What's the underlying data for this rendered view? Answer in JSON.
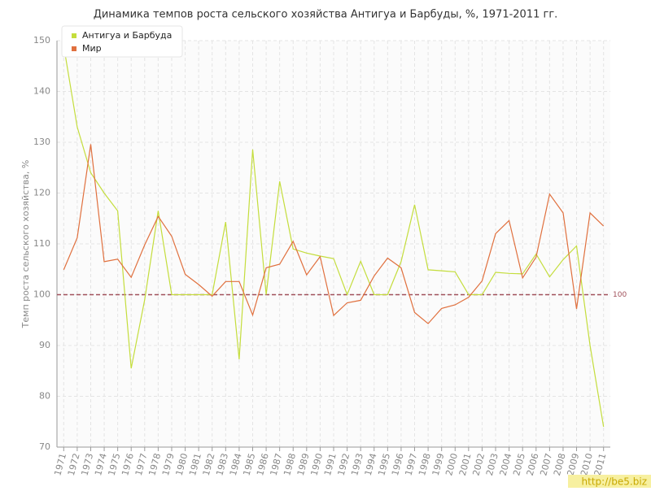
{
  "chart_data": {
    "type": "line",
    "title": "Динамика темпов роста сельского хозяйства Антигуа и Барбуды, %, 1971-2011 гг.",
    "y_label": "Темп роста сельского хозяйства, %",
    "categories": [
      "1971",
      "1972",
      "1973",
      "1974",
      "1975",
      "1976",
      "1977",
      "1978",
      "1979",
      "1980",
      "1981",
      "1982",
      "1983",
      "1984",
      "1985",
      "1986",
      "1987",
      "1988",
      "1989",
      "1990",
      "1991",
      "1992",
      "1993",
      "1994",
      "1995",
      "1996",
      "1997",
      "1998",
      "1999",
      "2000",
      "2001",
      "2002",
      "2003",
      "2004",
      "2005",
      "2006",
      "2007",
      "2008",
      "2009",
      "2010",
      "2011"
    ],
    "series": [
      {
        "name": "Антигуа и Барбуда",
        "color": "#c4dd3c",
        "values": [
          149,
          133,
          124,
          120,
          116.5,
          85.5,
          99,
          116.5,
          100,
          100,
          100,
          100,
          114.3,
          87.3,
          128.6,
          100,
          122.3,
          109,
          108.2,
          107.6,
          107.1,
          100,
          106.6,
          100,
          100,
          106.5,
          117.7,
          104.9,
          104.7,
          104.5,
          100,
          100,
          104.4,
          104.2,
          104.1,
          108,
          103.5,
          106.9,
          109.6,
          90,
          74
        ]
      },
      {
        "name": "Мир",
        "color": "#e0703e",
        "values": [
          104.9,
          111.2,
          129.6,
          106.5,
          107,
          103.4,
          109.8,
          115.4,
          111.5,
          104,
          102,
          99.7,
          102.6,
          102.6,
          96,
          105.3,
          106,
          110.5,
          103.9,
          107.5,
          95.9,
          98.4,
          98.9,
          103.7,
          107.2,
          105.3,
          96.5,
          94.3,
          97.3,
          98,
          99.5,
          102.7,
          112,
          114.6,
          103.3,
          107.4,
          119.8,
          116.1,
          97.2,
          116.1,
          113.5
        ]
      }
    ],
    "ylim": [
      70,
      150
    ],
    "yticks": [
      70,
      80,
      90,
      100,
      110,
      120,
      130,
      140,
      150
    ],
    "grid": true,
    "reference_line": 100,
    "reference_color": "#a0505a",
    "legend": "top-left",
    "watermark": "http://be5.biz"
  }
}
